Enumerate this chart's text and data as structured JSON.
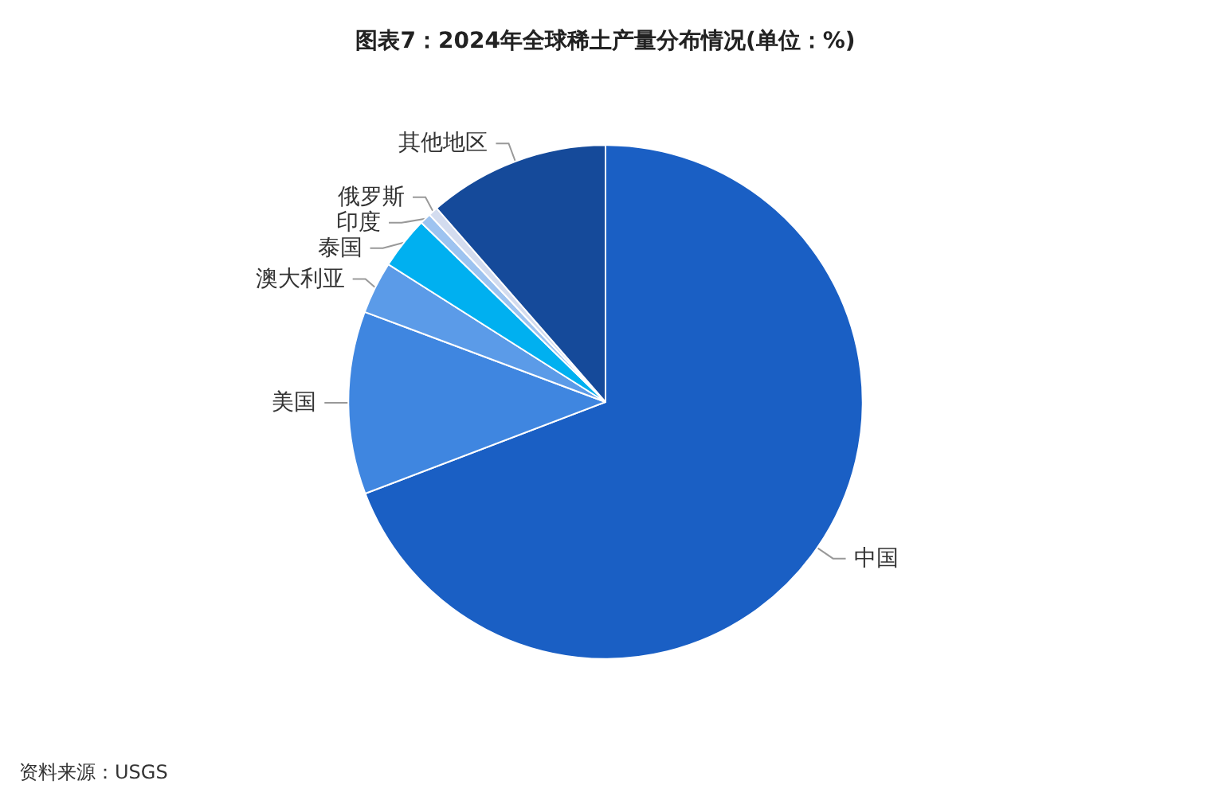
{
  "chart_data": {
    "type": "pie",
    "title": "图表7：2024年全球稀土产量分布情况(单位：%)",
    "categories": [
      "中国",
      "美国",
      "澳大利亚",
      "泰国",
      "印度",
      "俄罗斯",
      "其他地区"
    ],
    "values": [
      69.2,
      11.5,
      3.3,
      3.3,
      0.7,
      0.6,
      11.4
    ],
    "colors": [
      "#1a5fc4",
      "#3f86e0",
      "#5b9be8",
      "#00b0f0",
      "#9dc3f0",
      "#d3dcef",
      "#154a9a"
    ],
    "annotations": [
      "资料来源：USGS"
    ],
    "legend": false
  }
}
